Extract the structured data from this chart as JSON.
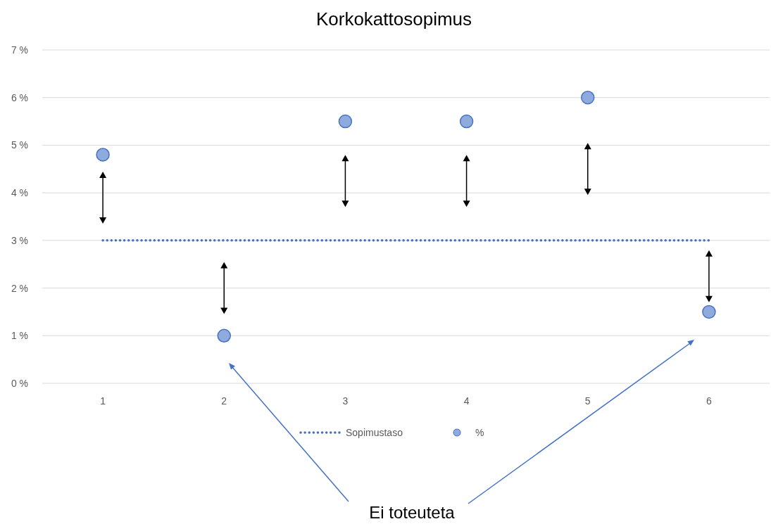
{
  "chart_data": {
    "type": "scatter",
    "title": "Korkokattosopimus",
    "categories": [
      "1",
      "2",
      "3",
      "4",
      "5",
      "6"
    ],
    "series": [
      {
        "name": "Sopimustaso",
        "type": "line",
        "color": "#4472c4",
        "line_style": "dotted",
        "values": [
          3,
          3,
          3,
          3,
          3,
          3
        ]
      },
      {
        "name": "%",
        "color": "#8faadc",
        "marker": "circle",
        "values": [
          4.8,
          1.0,
          5.5,
          5.5,
          6.0,
          1.5
        ]
      }
    ],
    "ylim": [
      0,
      7
    ],
    "yticks": [
      {
        "value": 0,
        "label": "0 %"
      },
      {
        "value": 1,
        "label": "1 %"
      },
      {
        "value": 2,
        "label": "2 %"
      },
      {
        "value": 3,
        "label": "3 %"
      },
      {
        "value": 4,
        "label": "4 %"
      },
      {
        "value": 5,
        "label": "5 %"
      },
      {
        "value": 6,
        "label": "6 %"
      },
      {
        "value": 7,
        "label": "7 %"
      }
    ],
    "grid": "y",
    "legend": "bottom",
    "annotations": [
      "Ei toteuteta"
    ]
  }
}
